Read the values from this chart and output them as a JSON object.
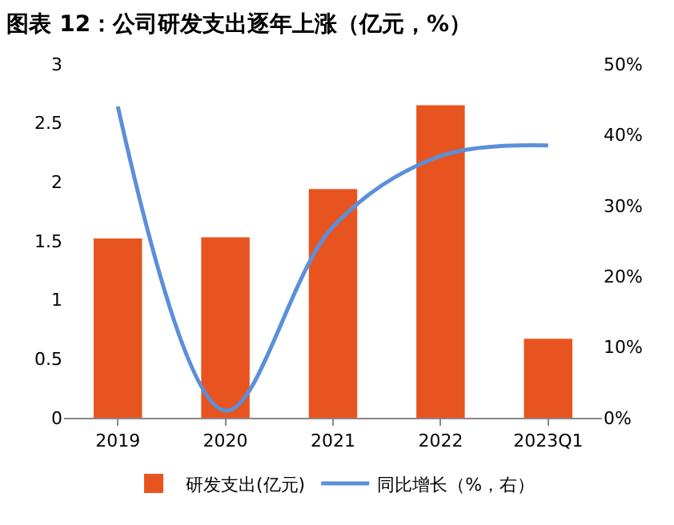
{
  "chart_data": {
    "type": "bar",
    "title": "图表 12：公司研发支出逐年上涨（亿元，%）",
    "categories": [
      "2019",
      "2020",
      "2021",
      "2022",
      "2023Q1"
    ],
    "series": [
      {
        "name": "研发支出(亿元)",
        "color": "#e8541f",
        "values": [
          1.52,
          1.53,
          1.94,
          2.65,
          0.67
        ]
      },
      {
        "name": "同比增长（%，右）",
        "type": "line",
        "axis": "y2",
        "color": "#5b8fd9",
        "values": [
          44,
          1,
          27,
          37,
          38.5
        ]
      }
    ],
    "ylim": [
      0,
      3
    ],
    "yticks": [
      0,
      0.5,
      1,
      1.5,
      2,
      2.5,
      3
    ],
    "y2lim": [
      0,
      50
    ],
    "y2ticks": [
      {
        "value": 0,
        "label": "0%"
      },
      {
        "value": 10,
        "label": "10%"
      },
      {
        "value": 20,
        "label": "20%"
      },
      {
        "value": 30,
        "label": "30%"
      },
      {
        "value": 40,
        "label": "40%"
      },
      {
        "value": 50,
        "label": "50%"
      }
    ],
    "grid": false,
    "legend": "bottom",
    "marker": "none",
    "line_style": "solid"
  }
}
